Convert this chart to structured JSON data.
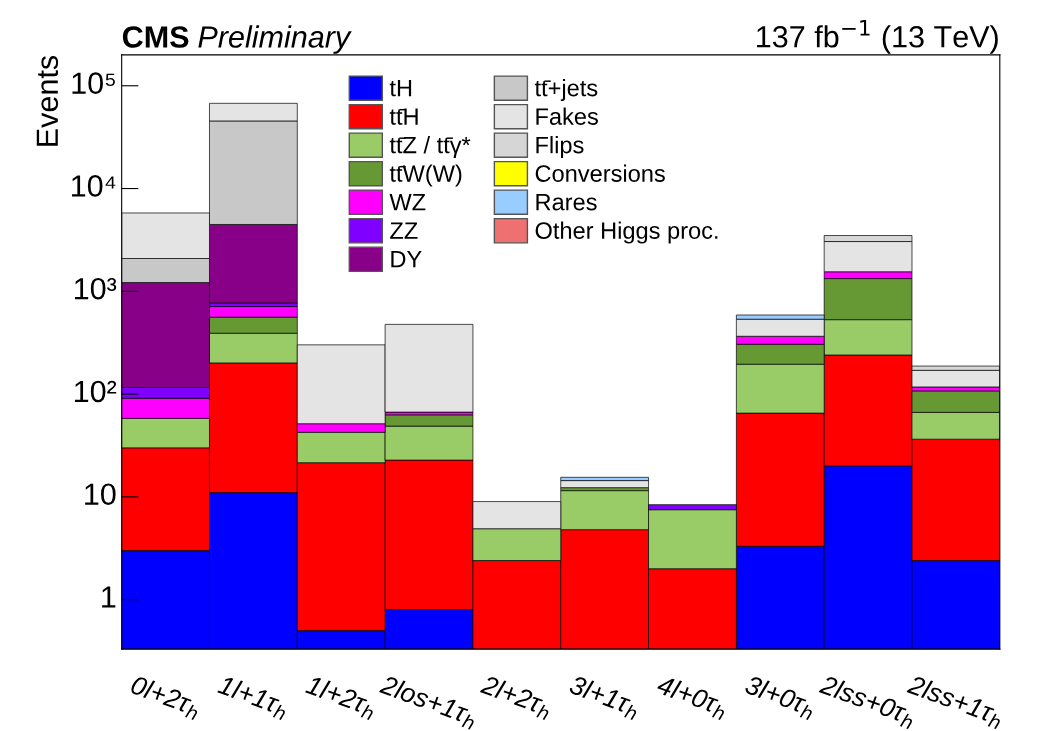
{
  "chart_data": {
    "type": "bar",
    "stacked": true,
    "log": true,
    "title": "CMS",
    "subtitle": "Preliminary",
    "ylabel": "Events",
    "annotations": [
      "137 fb$^{−1}$ (13 TeV)"
    ],
    "categories": [
      "0l+2τ$_{h}$",
      "1l+1τ$_{h}$",
      "1l+2τ$_{h}$",
      "2los+1τ$_{h}$",
      "2l+2τ$_{h}$",
      "3l+1τ$_{h}$",
      "4l+0τ$_{h}$",
      "3l+0τ$_{h}$",
      "2lss+0τ$_{h}$",
      "2lss+1τ$_{h}$"
    ],
    "series": [
      {
        "name": "tH",
        "color": "#0000ff",
        "values": [
          3.0,
          11,
          0.5,
          0.8,
          null,
          null,
          null,
          3.3,
          20,
          2.4
        ]
      },
      {
        "name": "tt̄H",
        "color": "#ff0000",
        "values": [
          27,
          190,
          21,
          22,
          2.4,
          4.8,
          2.0,
          62,
          220,
          34
        ]
      },
      {
        "name": "tt̄Z / tt̄γ*",
        "color": "#99cc66",
        "values": [
          28,
          190,
          21,
          26,
          2.5,
          6.7,
          5.5,
          130,
          290,
          30
        ]
      },
      {
        "name": "tt̄W(W)",
        "color": "#669933",
        "values": [
          null,
          170,
          null,
          14,
          null,
          0.8,
          null,
          110,
          800,
          41
        ]
      },
      {
        "name": "WZ",
        "color": "#ff00ff",
        "values": [
          33,
          150,
          9,
          4,
          null,
          null,
          null,
          60,
          220,
          10
        ]
      },
      {
        "name": "ZZ",
        "color": "#7f00ff",
        "values": [
          25,
          60,
          null,
          null,
          null,
          null,
          0.9,
          null,
          null,
          null
        ]
      },
      {
        "name": "DY",
        "color": "#880088",
        "values": [
          1100,
          3700,
          null,
          null,
          null,
          null,
          null,
          null,
          null,
          null
        ]
      },
      {
        "name": "tt̄+jets",
        "color": "#c8c8c8",
        "values": [
          870,
          41000,
          null,
          null,
          null,
          null,
          null,
          null,
          null,
          null
        ]
      },
      {
        "name": "Fakes",
        "color": "#e4e4e4",
        "values": [
          3700,
          22000,
          250,
          410,
          4.1,
          2.1,
          null,
          170,
          1500,
          53
        ]
      },
      {
        "name": "Flips",
        "color": "#d6d6d6",
        "values": [
          null,
          null,
          null,
          null,
          null,
          null,
          null,
          null,
          440,
          17
        ]
      },
      {
        "name": "Conversions",
        "color": "#ffff00",
        "values": [
          null,
          null,
          null,
          null,
          null,
          null,
          null,
          null,
          null,
          null
        ]
      },
      {
        "name": "Rares",
        "color": "#99ccff",
        "values": [
          null,
          null,
          null,
          null,
          null,
          1.1,
          null,
          53,
          null,
          null
        ]
      },
      {
        "name": "Other Higgs proc.",
        "color": "#ee7070",
        "values": [
          null,
          null,
          null,
          null,
          null,
          null,
          null,
          null,
          null,
          null
        ]
      }
    ],
    "ylim": [
      0.33,
      200000
    ],
    "yticks": [
      1,
      10,
      {
        "value": 100,
        "label": "10²"
      },
      {
        "value": 1000,
        "label": "10³"
      },
      {
        "value": 10000,
        "label": "10⁴"
      },
      {
        "value": 100000,
        "label": "10⁵"
      }
    ],
    "legend": "top",
    "grid": false
  }
}
